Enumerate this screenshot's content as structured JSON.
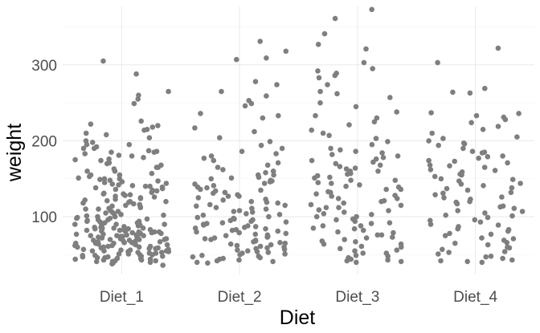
{
  "chart_data": {
    "type": "scatter",
    "jitter": true,
    "title": "",
    "xlabel": "Diet",
    "ylabel": "weight",
    "categories": [
      "Diet_1",
      "Diet_2",
      "Diet_3",
      "Diet_4"
    ],
    "y_ticks": [
      100,
      200,
      300
    ],
    "ylim": [
      24,
      377
    ],
    "grid": true,
    "theme": "minimal",
    "point_color": "#7f7f7f",
    "series": [
      {
        "category": "Diet_1",
        "values": [
          288,
          305,
          249,
          265,
          260,
          255,
          222,
          220,
          226,
          218,
          214,
          208,
          204,
          198,
          195,
          192,
          190,
          187,
          186,
          185,
          183,
          181,
          178,
          176,
          174,
          171,
          168,
          165,
          163,
          160,
          157,
          155,
          153,
          150,
          148,
          146,
          144,
          142,
          140,
          138,
          136,
          134,
          132,
          130,
          128,
          126,
          124,
          122,
          120,
          118,
          116,
          114,
          112,
          110,
          108,
          106,
          104,
          102,
          100,
          98,
          96,
          94,
          92,
          90,
          88,
          86,
          85,
          84,
          83,
          82,
          81,
          80,
          79,
          78,
          77,
          76,
          75,
          74,
          73,
          72,
          71,
          70,
          69,
          68,
          67,
          66,
          65,
          64,
          63,
          62,
          61,
          60,
          59,
          58,
          57,
          56,
          55,
          54,
          53,
          52,
          51,
          50,
          49,
          48,
          47,
          46,
          45,
          44,
          43,
          42,
          41,
          40,
          39,
          42,
          44,
          46,
          48,
          50,
          52,
          54,
          56,
          58,
          60,
          62,
          64,
          66,
          68,
          70,
          72,
          74,
          76,
          78,
          80,
          82,
          84,
          86,
          88,
          90,
          92,
          94,
          96,
          98,
          100,
          105,
          110,
          115,
          120,
          125,
          130,
          135,
          140,
          145,
          150,
          155,
          160,
          165,
          170,
          175,
          180,
          185,
          190,
          195,
          200,
          210,
          215,
          43,
          45,
          47,
          49,
          51,
          53,
          55,
          57,
          59,
          61,
          63,
          65,
          67,
          69,
          71,
          73,
          75,
          77,
          79,
          81,
          83,
          85,
          87,
          89,
          91,
          93,
          95,
          97,
          99,
          101,
          103,
          107,
          111,
          113,
          117,
          119,
          121,
          123,
          127,
          129,
          131,
          137,
          139,
          141,
          143,
          147,
          149,
          151,
          41,
          38,
          36,
          55,
          60,
          65,
          70,
          75,
          80,
          85,
          90
        ]
      },
      {
        "category": "Diet_2",
        "values": [
          331,
          318,
          309,
          307,
          278,
          274,
          265,
          259,
          253,
          249,
          246,
          236,
          233,
          230,
          217,
          212,
          204,
          199,
          194,
          190,
          186,
          183,
          180,
          177,
          174,
          171,
          168,
          165,
          162,
          160,
          158,
          155,
          152,
          150,
          148,
          146,
          144,
          141,
          138,
          136,
          134,
          132,
          129,
          127,
          125,
          122,
          120,
          118,
          116,
          114,
          112,
          110,
          108,
          106,
          104,
          102,
          100,
          98,
          96,
          94,
          92,
          90,
          88,
          86,
          84,
          82,
          80,
          78,
          76,
          74,
          72,
          70,
          68,
          66,
          64,
          62,
          60,
          58,
          56,
          54,
          52,
          50,
          48,
          46,
          44,
          42,
          40,
          39,
          41,
          43,
          45,
          47,
          49,
          51,
          53,
          55,
          57,
          59,
          61,
          63,
          65,
          67,
          69,
          71,
          73,
          75,
          77,
          79,
          81,
          83,
          85,
          87,
          89,
          91,
          93,
          95,
          97,
          99,
          103,
          107,
          111,
          115,
          119,
          123,
          127,
          131,
          135,
          139,
          143,
          147,
          151,
          155
        ]
      },
      {
        "category": "Diet_3",
        "values": [
          373,
          361,
          341,
          327,
          321,
          303,
          295,
          292,
          289,
          286,
          283,
          274,
          265,
          262,
          257,
          250,
          245,
          238,
          233,
          230,
          225,
          221,
          214,
          210,
          207,
          203,
          199,
          195,
          190,
          186,
          182,
          178,
          174,
          170,
          166,
          163,
          160,
          157,
          154,
          151,
          148,
          145,
          142,
          139,
          136,
          133,
          130,
          127,
          124,
          121,
          118,
          115,
          112,
          109,
          106,
          103,
          100,
          97,
          94,
          91,
          88,
          85,
          82,
          79,
          76,
          73,
          70,
          67,
          64,
          61,
          58,
          55,
          52,
          49,
          46,
          43,
          41,
          40,
          42,
          44,
          48,
          52,
          56,
          60,
          64,
          68,
          72,
          76,
          80,
          84,
          88,
          92,
          96,
          100,
          104,
          108,
          112,
          116,
          120,
          124,
          128,
          132,
          136,
          140,
          144,
          148,
          152,
          156,
          160,
          164,
          168,
          172,
          176,
          180,
          184,
          188
        ]
      },
      {
        "category": "Diet_4",
        "values": [
          322,
          303,
          269,
          264,
          263,
          237,
          236,
          233,
          231,
          228,
          224,
          219,
          215,
          210,
          205,
          203,
          200,
          197,
          196,
          194,
          190,
          186,
          184,
          180,
          177,
          174,
          171,
          168,
          165,
          162,
          159,
          156,
          153,
          150,
          147,
          144,
          141,
          138,
          135,
          132,
          129,
          126,
          123,
          120,
          117,
          114,
          111,
          108,
          105,
          102,
          99,
          96,
          93,
          90,
          87,
          84,
          81,
          78,
          75,
          72,
          69,
          66,
          63,
          60,
          57,
          54,
          51,
          48,
          45,
          42,
          40,
          41,
          43,
          47,
          53,
          59,
          65,
          71,
          77,
          83,
          89,
          95,
          101,
          107,
          113,
          119,
          125,
          131,
          137,
          143,
          149,
          155,
          161,
          167,
          173,
          179,
          185
        ]
      }
    ]
  }
}
